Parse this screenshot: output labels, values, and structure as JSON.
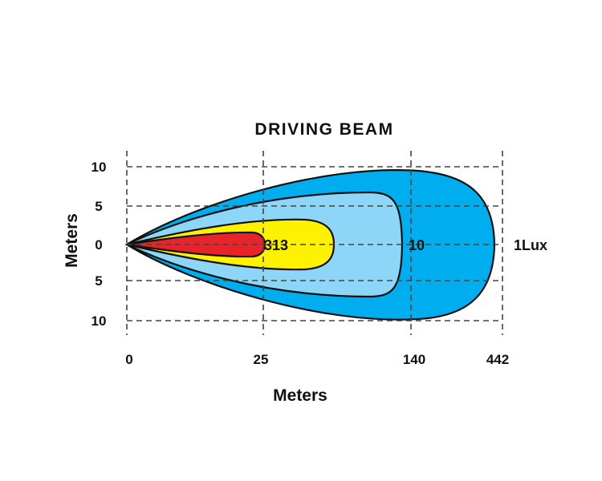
{
  "chart_data": {
    "type": "area",
    "title": "DRIVING BEAM",
    "xlabel": "Meters",
    "ylabel": "Meters",
    "x_ticks": [
      "0",
      "25",
      "140",
      "442"
    ],
    "y_ticks": [
      "10",
      "5",
      "0",
      "5",
      "10"
    ],
    "ylim": [
      -10,
      10
    ],
    "grid": true,
    "zones": [
      {
        "lux_label": "1Lux",
        "color": "#00AEEF",
        "reach_m": 442
      },
      {
        "lux_label": "10",
        "color": "#8DD6F7",
        "reach_m": 140
      },
      {
        "lux_label": "313",
        "color": "#FFF200",
        "reach_m": 25
      },
      {
        "lux_label": "",
        "color": "#E8232A",
        "reach_m": 25
      }
    ]
  }
}
